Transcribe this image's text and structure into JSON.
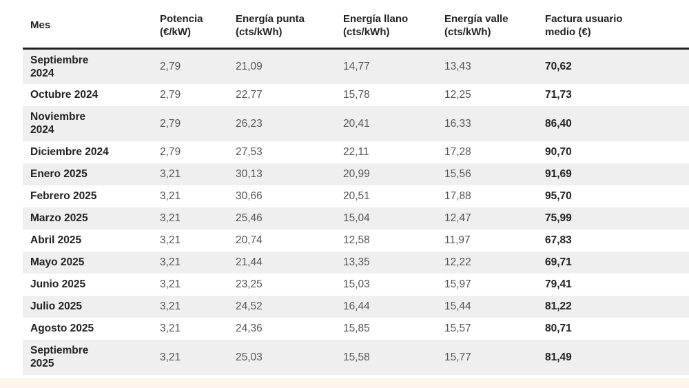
{
  "table": {
    "headers": [
      "Mes",
      "Potencia (€/kW)",
      "Energía punta (cts/kWh)",
      "Energía llano (cts/kWh)",
      "Energía valle (cts/kWh)",
      "Factura usuario medio (€)"
    ],
    "rows": [
      [
        "Septiembre 2024",
        "2,79",
        "21,09",
        "14,77",
        "13,43",
        "70,62"
      ],
      [
        "Octubre 2024",
        "2,79",
        "22,77",
        "15,78",
        "12,25",
        "71,73"
      ],
      [
        "Noviembre 2024",
        "2,79",
        "26,23",
        "20,41",
        "16,33",
        "86,40"
      ],
      [
        "Diciembre 2024",
        "2,79",
        "27,53",
        "22,11",
        "17,28",
        "90,70"
      ],
      [
        "Enero 2025",
        "3,21",
        "30,13",
        "20,99",
        "15,56",
        "91,69"
      ],
      [
        "Febrero 2025",
        "3,21",
        "30,66",
        "20,51",
        "17,88",
        "95,70"
      ],
      [
        "Marzo 2025",
        "3,21",
        "25,46",
        "15,04",
        "12,47",
        "75,99"
      ],
      [
        "Abril 2025",
        "3,21",
        "20,74",
        "12,58",
        "11,97",
        "67,83"
      ],
      [
        "Mayo 2025",
        "3,21",
        "21,44",
        "13,35",
        "12,22",
        "69,71"
      ],
      [
        "Junio 2025",
        "3,21",
        "23,25",
        "15,03",
        "15,97",
        "79,41"
      ],
      [
        "Julio 2025",
        "3,21",
        "24,52",
        "16,44",
        "15,44",
        "81,22"
      ],
      [
        "Agosto 2025",
        "3,21",
        "24,36",
        "15,85",
        "15,57",
        "80,71"
      ],
      [
        "Septiembre 2025",
        "3,21",
        "25,03",
        "15,58",
        "15,77",
        "81,49"
      ]
    ]
  }
}
